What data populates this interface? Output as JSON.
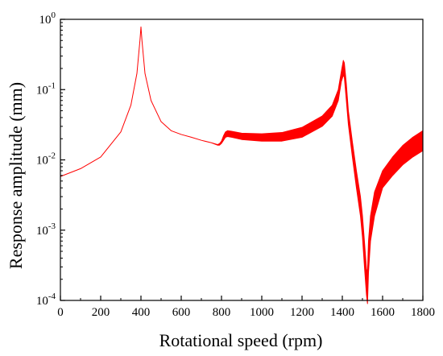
{
  "chart_data": {
    "type": "line",
    "xlabel": "Rotational speed (rpm)",
    "ylabel": "Response amplitude (mm)",
    "xlim": [
      0,
      1800
    ],
    "ylim": [
      0.0001,
      1
    ],
    "yscale": "log",
    "grid": false,
    "x_ticks": [
      "0",
      "200",
      "400",
      "600",
      "800",
      "1000",
      "1200",
      "1400",
      "1600",
      "1800"
    ],
    "y_ticks": [
      {
        "base": "10",
        "exp": "-4"
      },
      {
        "base": "10",
        "exp": "-3"
      },
      {
        "base": "10",
        "exp": "-2"
      },
      {
        "base": "10",
        "exp": "-1"
      },
      {
        "base": "10",
        "exp": "0"
      }
    ],
    "color": "#ff0000",
    "series": [
      {
        "band": true,
        "x": [
          0,
          100,
          200,
          300,
          350,
          380,
          395,
          400,
          405,
          420,
          450,
          500,
          550,
          600,
          650,
          700,
          750,
          780,
          790,
          800,
          810,
          820,
          830,
          850,
          900,
          1000,
          1100,
          1200,
          1300,
          1350,
          1380,
          1395,
          1405,
          1410,
          1420,
          1430,
          1450,
          1470,
          1490,
          1500,
          1510,
          1520,
          1525,
          1530,
          1540,
          1560,
          1600,
          1650,
          1700,
          1750,
          1800
        ],
        "upper": [
          0.0058,
          0.0075,
          0.011,
          0.025,
          0.06,
          0.17,
          0.5,
          0.78,
          0.5,
          0.17,
          0.07,
          0.035,
          0.026,
          0.023,
          0.021,
          0.019,
          0.0175,
          0.0165,
          0.017,
          0.0185,
          0.022,
          0.025,
          0.026,
          0.0255,
          0.024,
          0.0235,
          0.0245,
          0.029,
          0.042,
          0.06,
          0.1,
          0.18,
          0.26,
          0.24,
          0.12,
          0.05,
          0.018,
          0.007,
          0.003,
          0.0016,
          0.00068,
          0.00028,
          0.00025,
          0.0007,
          0.0016,
          0.0035,
          0.007,
          0.011,
          0.016,
          0.021,
          0.026
        ],
        "lower": [
          0.0058,
          0.0075,
          0.011,
          0.025,
          0.06,
          0.17,
          0.5,
          0.78,
          0.5,
          0.17,
          0.07,
          0.035,
          0.026,
          0.023,
          0.021,
          0.019,
          0.0175,
          0.0162,
          0.0162,
          0.0172,
          0.019,
          0.021,
          0.0215,
          0.021,
          0.0195,
          0.0185,
          0.0185,
          0.021,
          0.03,
          0.042,
          0.07,
          0.13,
          0.16,
          0.15,
          0.07,
          0.032,
          0.011,
          0.004,
          0.0016,
          0.0008,
          0.0003,
          0.00012,
          9e-05,
          0.00025,
          0.0007,
          0.0016,
          0.004,
          0.006,
          0.0085,
          0.011,
          0.0135
        ]
      }
    ]
  }
}
